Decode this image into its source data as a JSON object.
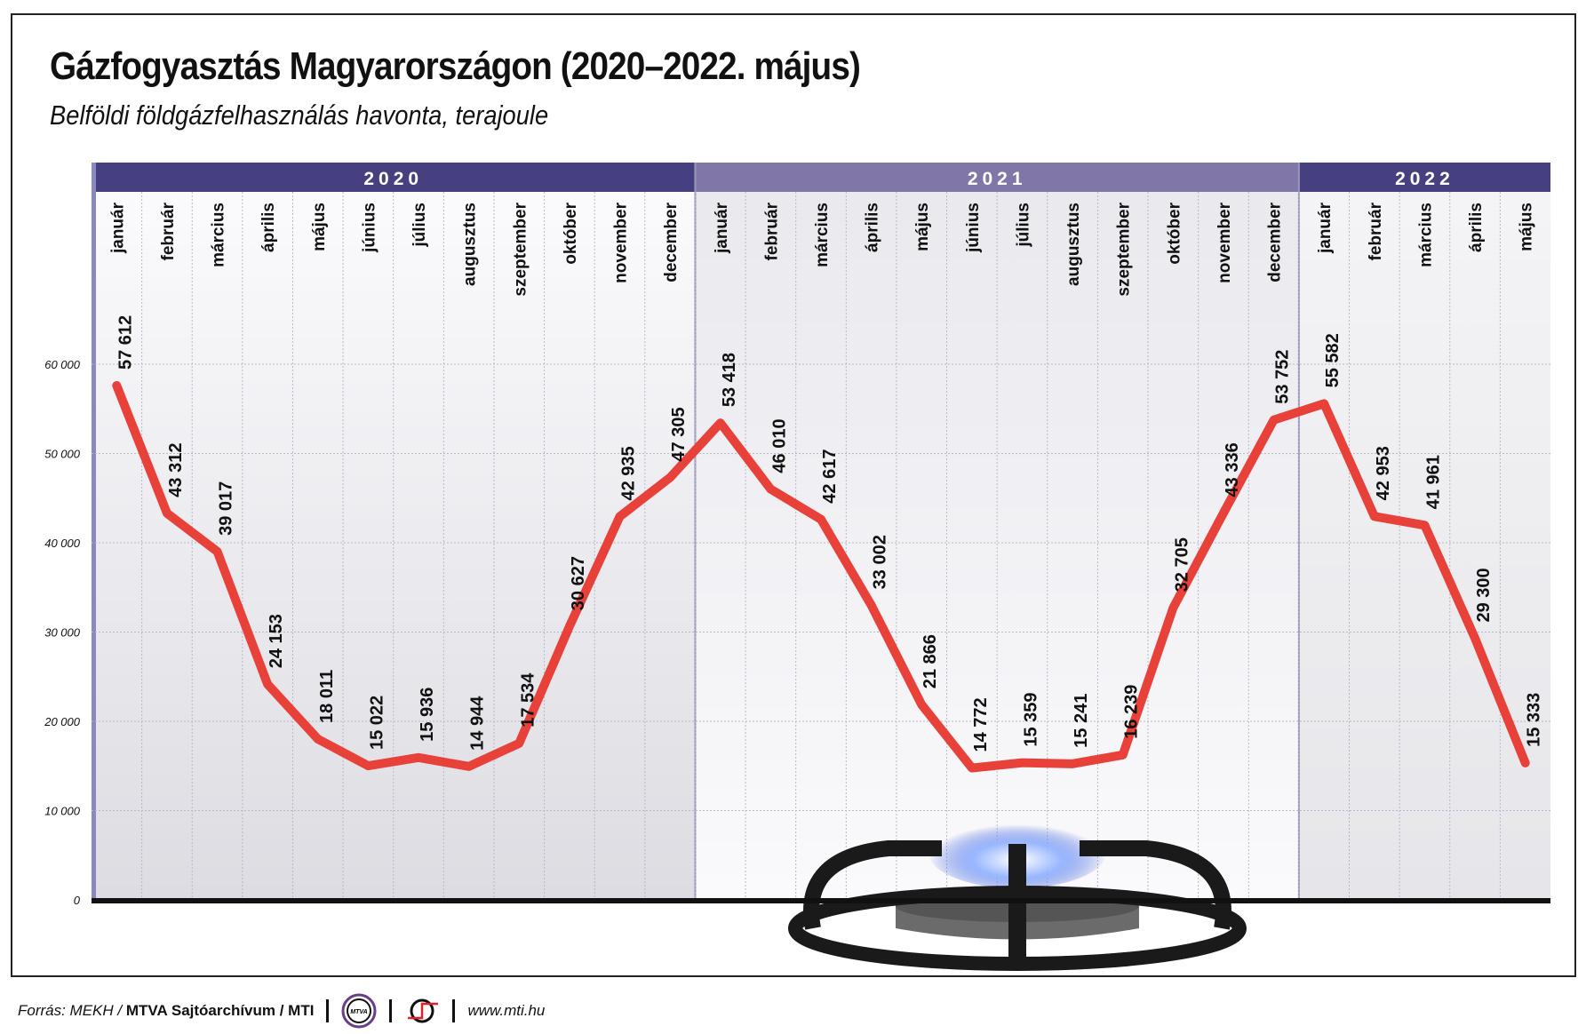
{
  "chart_data": {
    "type": "line",
    "title": "Gázfogyasztás Magyarországon (2020–2022. május)",
    "subtitle": "Belföldi földgázfelhasználás havonta, terajoule",
    "xlabel": "",
    "ylabel": "terajoule",
    "ylim": [
      0,
      60000
    ],
    "yticks": [
      "0",
      "10 000",
      "20 000",
      "30 000",
      "40 000",
      "50 000",
      "60 000"
    ],
    "ytick_values": [
      0,
      10000,
      20000,
      30000,
      40000,
      50000,
      60000
    ],
    "years": [
      {
        "label": "2020",
        "months": 12,
        "color": "#463f80"
      },
      {
        "label": "2021",
        "months": 12,
        "color": "#8077a8"
      },
      {
        "label": "2022",
        "months": 5,
        "color": "#463f80"
      }
    ],
    "categories": [
      "január",
      "február",
      "március",
      "április",
      "május",
      "június",
      "július",
      "augusztus",
      "szeptember",
      "október",
      "november",
      "december",
      "január",
      "február",
      "március",
      "április",
      "május",
      "június",
      "július",
      "augusztus",
      "szeptember",
      "október",
      "november",
      "december",
      "január",
      "február",
      "március",
      "április",
      "május"
    ],
    "values": [
      57612,
      43312,
      39017,
      24153,
      18011,
      15022,
      15936,
      14944,
      17534,
      30627,
      42935,
      47305,
      53418,
      46010,
      42617,
      33002,
      21866,
      14772,
      15359,
      15241,
      16239,
      32705,
      43336,
      53752,
      55582,
      42953,
      41961,
      29300,
      15333
    ],
    "labels": [
      "57 612",
      "43 312",
      "39 017",
      "24 153",
      "18 011",
      "15 022",
      "15 936",
      "14 944",
      "17 534",
      "30 627",
      "42 935",
      "47 305",
      "53 418",
      "46 010",
      "42 617",
      "33 002",
      "21 866",
      "14 772",
      "15 359",
      "15 241",
      "16 239",
      "32 705",
      "43 336",
      "53 752",
      "55 582",
      "42 953",
      "41 961",
      "29 300",
      "15 333"
    ],
    "line_color": "#e8413a",
    "grid": true
  },
  "footer": {
    "source_prefix": "Forrás: MEKH / ",
    "source_bold": "MTVA Sajtóarchívum / MTI",
    "logo1": "MTVA",
    "url": "www.mti.hu"
  }
}
